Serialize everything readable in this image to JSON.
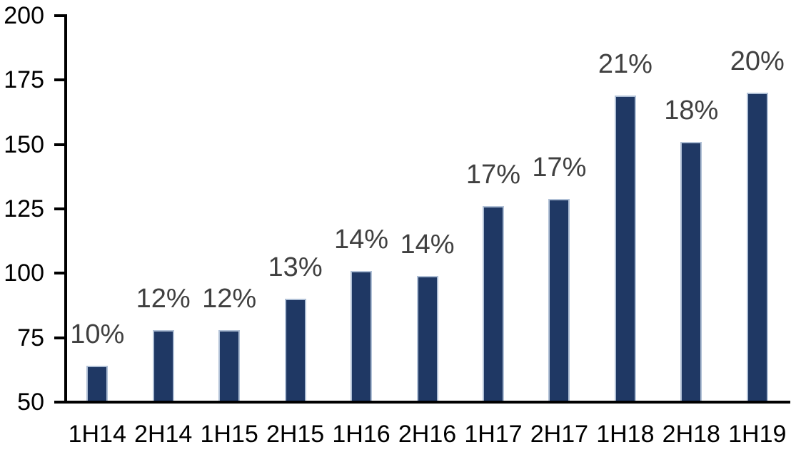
{
  "chart_data": {
    "type": "bar",
    "title": "",
    "xlabel": "",
    "ylabel": "",
    "categories": [
      "1H14",
      "2H14",
      "1H15",
      "2H15",
      "1H16",
      "2H16",
      "1H17",
      "2H17",
      "1H18",
      "2H18",
      "1H19"
    ],
    "values": [
      64,
      78,
      78,
      90,
      101,
      99,
      126,
      129,
      169,
      151,
      170
    ],
    "bar_labels": [
      "10%",
      "12%",
      "12%",
      "13%",
      "14%",
      "14%",
      "17%",
      "17%",
      "21%",
      "18%",
      "20%"
    ],
    "ylim": [
      50,
      200
    ],
    "y_ticks": [
      "50",
      "75",
      "100",
      "125",
      "150",
      "175",
      "200"
    ],
    "grid": false,
    "legend": false,
    "colors": {
      "bar_fill": "#1F3864",
      "bar_border": "#B0C0D6",
      "data_label": "#404040",
      "axis": "#000000",
      "tick_label": "#000000",
      "background": "#FFFFFF"
    }
  }
}
